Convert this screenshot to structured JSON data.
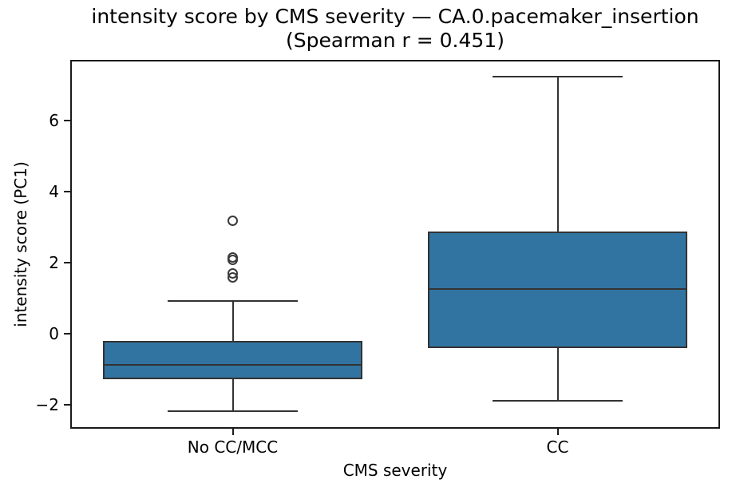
{
  "chart_data": {
    "type": "box",
    "title": "intensity score by CMS severity — CA.0.pacemaker_insertion",
    "subtitle": "(Spearman r = 0.451)",
    "spearman_r": 0.451,
    "xlabel": "CMS severity",
    "ylabel": "intensity score (PC1)",
    "categories": [
      "No CC/MCC",
      "CC"
    ],
    "yticks": [
      -2,
      0,
      2,
      4,
      6
    ],
    "ylim": [
      -2.67,
      7.71
    ],
    "grid": false,
    "boxes": [
      {
        "category": "No CC/MCC",
        "whisker_low": -2.18,
        "q1": -1.28,
        "median": -0.88,
        "q3": -0.2,
        "whisker_high": 0.92,
        "outliers": [
          1.58,
          1.71,
          2.09,
          2.16,
          3.19
        ]
      },
      {
        "category": "CC",
        "whisker_low": -1.89,
        "q1": -0.4,
        "median": 1.26,
        "q3": 2.88,
        "whisker_high": 7.24,
        "outliers": []
      }
    ],
    "colors": {
      "box_fill": "#3274a1",
      "line": "#333333",
      "spine": "#1a1a1a",
      "text": "#000000"
    }
  }
}
